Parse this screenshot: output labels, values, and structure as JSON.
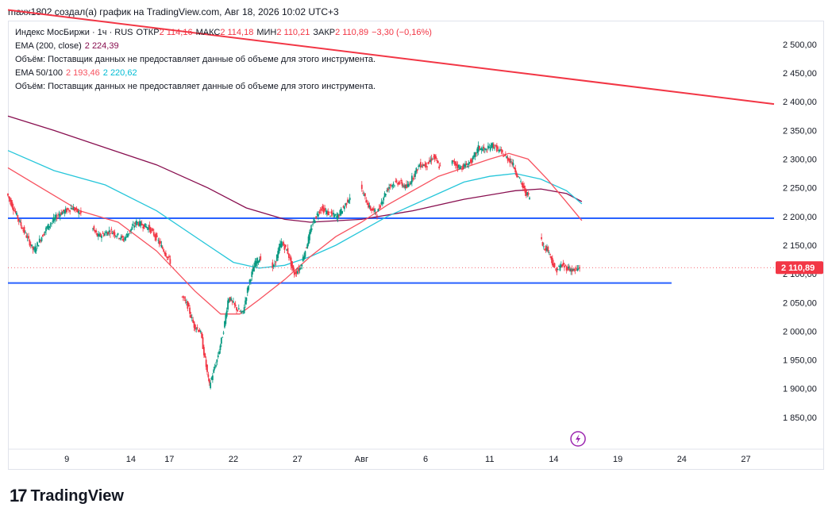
{
  "header": {
    "text": "maxx1802 создал(а) график на TradingView.com, Авг 18, 2026 10:02 UTC+3"
  },
  "legend": {
    "symbol": "Индекс МосБиржи · 1ч · RUS",
    "open_label": "ОТКР",
    "open_value": "2 114,16",
    "high_label": "МАКС",
    "high_value": "2 114,18",
    "low_label": "МИН",
    "low_value": "2 110,21",
    "close_label": "ЗАКР",
    "close_value": "2 110,89",
    "change": "−3,30 (−0,16%)",
    "ema200_label": "EMA (200, close)",
    "ema200_value": "2 224,39",
    "volume_note": "Объём: Поставщик данных не предоставляет данные об объеме для этого инструмента.",
    "ema50_100_label": "EMA 50/100",
    "ema50_value": "2 193,46",
    "ema100_value": "2 220,62"
  },
  "price_tag": "2 110,89",
  "colors": {
    "up": "#089981",
    "down": "#f23645",
    "ema200": "#880e4f",
    "ema50": "#f7525f",
    "ema100": "#26c6da",
    "hline": "#2962ff",
    "trend": "#f23645"
  },
  "brand": {
    "logo": "17",
    "name": "TradingView"
  },
  "icons": {
    "alert": "lightning-icon"
  },
  "chart_data": {
    "type": "line",
    "ylim": [
      1800,
      2540
    ],
    "y_ticks": [
      "2 500,00",
      "2 450,00",
      "2 400,00",
      "2 350,00",
      "2 300,00",
      "2 250,00",
      "2 200,00",
      "2 150,00",
      "2 100,00",
      "2 050,00",
      "2 000,00",
      "1 950,00",
      "1 900,00",
      "1 850,00"
    ],
    "y_tick_values": [
      2500,
      2450,
      2400,
      2350,
      2300,
      2250,
      2200,
      2150,
      2100,
      2050,
      2000,
      1950,
      1900,
      1850
    ],
    "x_ticks": [
      "9",
      "14",
      "17",
      "22",
      "27",
      "Авг",
      "6",
      "11",
      "14",
      "19",
      "24",
      "27"
    ],
    "x_tick_days": [
      9,
      14,
      17,
      22,
      27,
      32,
      37,
      42,
      47,
      52,
      57,
      62
    ],
    "x_range_days": [
      4.4,
      64.2
    ],
    "price_path": [
      [
        4.4,
        2240
      ],
      [
        5.5,
        2185
      ],
      [
        6.5,
        2140
      ],
      [
        7.5,
        2180
      ],
      [
        8.5,
        2205
      ],
      [
        9.5,
        2215
      ],
      [
        10.5,
        2200
      ],
      [
        11.5,
        2165
      ],
      [
        12.5,
        2175
      ],
      [
        13.5,
        2160
      ],
      [
        14.5,
        2190
      ],
      [
        15.5,
        2180
      ],
      [
        16,
        2165
      ],
      [
        16.8,
        2135
      ],
      [
        17.3,
        2115
      ],
      [
        17.8,
        2070
      ],
      [
        18.5,
        2045
      ],
      [
        19,
        2010
      ],
      [
        19.5,
        2000
      ],
      [
        19.8,
        1960
      ],
      [
        20.2,
        1905
      ],
      [
        20.8,
        1950
      ],
      [
        21.3,
        2000
      ],
      [
        21.7,
        2060
      ],
      [
        22.3,
        2040
      ],
      [
        22.8,
        2030
      ],
      [
        23.3,
        2085
      ],
      [
        23.8,
        2120
      ],
      [
        24.5,
        2135
      ],
      [
        25.2,
        2110
      ],
      [
        25.8,
        2155
      ],
      [
        26.3,
        2140
      ],
      [
        26.8,
        2100
      ],
      [
        27.3,
        2110
      ],
      [
        27.8,
        2150
      ],
      [
        28.3,
        2190
      ],
      [
        28.9,
        2215
      ],
      [
        29.5,
        2205
      ],
      [
        30.2,
        2200
      ],
      [
        30.8,
        2220
      ],
      [
        31.3,
        2240
      ],
      [
        31.7,
        2270
      ],
      [
        32.2,
        2240
      ],
      [
        32.7,
        2215
      ],
      [
        33.3,
        2205
      ],
      [
        33.8,
        2235
      ],
      [
        34.3,
        2255
      ],
      [
        35,
        2260
      ],
      [
        35.6,
        2250
      ],
      [
        36.1,
        2270
      ],
      [
        36.6,
        2290
      ],
      [
        37.2,
        2290
      ],
      [
        37.7,
        2305
      ],
      [
        38.2,
        2285
      ],
      [
        38.7,
        2295
      ],
      [
        39.2,
        2295
      ],
      [
        39.8,
        2285
      ],
      [
        40.3,
        2290
      ],
      [
        40.8,
        2300
      ],
      [
        41.2,
        2320
      ],
      [
        41.8,
        2315
      ],
      [
        42.3,
        2325
      ],
      [
        42.8,
        2315
      ],
      [
        43.3,
        2305
      ],
      [
        43.8,
        2295
      ],
      [
        44.3,
        2270
      ],
      [
        44.8,
        2245
      ],
      [
        45.3,
        2230
      ],
      [
        45.8,
        2200
      ],
      [
        46.2,
        2150
      ],
      [
        46.7,
        2140
      ],
      [
        47.2,
        2105
      ],
      [
        47.7,
        2115
      ],
      [
        48.2,
        2110
      ],
      [
        48.7,
        2105
      ],
      [
        49.1,
        2110.89
      ]
    ],
    "ema200_path": [
      [
        4.4,
        2375
      ],
      [
        8,
        2350
      ],
      [
        12,
        2320
      ],
      [
        16,
        2290
      ],
      [
        20,
        2250
      ],
      [
        23,
        2215
      ],
      [
        26,
        2195
      ],
      [
        28,
        2190
      ],
      [
        32,
        2195
      ],
      [
        36,
        2210
      ],
      [
        40,
        2230
      ],
      [
        44,
        2245
      ],
      [
        46,
        2248
      ],
      [
        48,
        2240
      ],
      [
        49.2,
        2226
      ]
    ],
    "ema100_path": [
      [
        4.4,
        2315
      ],
      [
        8,
        2280
      ],
      [
        12,
        2255
      ],
      [
        16,
        2210
      ],
      [
        20,
        2150
      ],
      [
        22,
        2120
      ],
      [
        24,
        2110
      ],
      [
        26,
        2115
      ],
      [
        28,
        2130
      ],
      [
        30,
        2150
      ],
      [
        32,
        2175
      ],
      [
        34,
        2200
      ],
      [
        36,
        2220
      ],
      [
        38,
        2240
      ],
      [
        40,
        2260
      ],
      [
        42,
        2270
      ],
      [
        44,
        2275
      ],
      [
        46,
        2265
      ],
      [
        48,
        2245
      ],
      [
        49.2,
        2222
      ]
    ],
    "ema50_path": [
      [
        4.4,
        2285
      ],
      [
        7,
        2250
      ],
      [
        10,
        2210
      ],
      [
        13,
        2190
      ],
      [
        16,
        2140
      ],
      [
        19,
        2070
      ],
      [
        21,
        2030
      ],
      [
        22.5,
        2030
      ],
      [
        24,
        2055
      ],
      [
        26,
        2090
      ],
      [
        28,
        2130
      ],
      [
        30,
        2165
      ],
      [
        32,
        2190
      ],
      [
        34,
        2220
      ],
      [
        36,
        2245
      ],
      [
        38,
        2270
      ],
      [
        40,
        2285
      ],
      [
        42,
        2300
      ],
      [
        43.5,
        2310
      ],
      [
        45,
        2300
      ],
      [
        46.5,
        2265
      ],
      [
        48,
        2225
      ],
      [
        49.2,
        2193
      ]
    ],
    "hlines": [
      [
        2197,
        4.4,
        64.2
      ],
      [
        2084,
        4.4,
        56.2
      ]
    ],
    "trendline": [
      [
        4.4,
        2560
      ],
      [
        64.2,
        2396
      ]
    ],
    "last_price": 2110.89
  }
}
